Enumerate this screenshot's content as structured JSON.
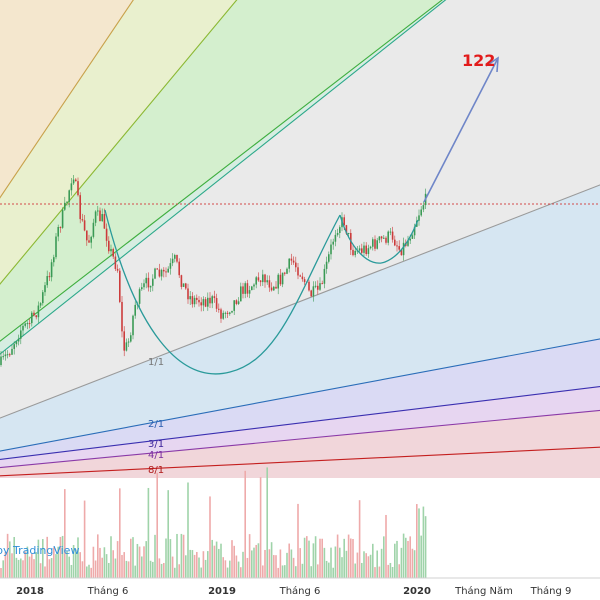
{
  "chart_data": {
    "type": "candlestick",
    "gann_fan": {
      "labels": [
        "1/1",
        "2/1",
        "3/1",
        "4/1",
        "8/1"
      ],
      "label_colors": [
        "#777777",
        "#2a5db0",
        "#3a1f9a",
        "#7a2ea0",
        "#b01c1c"
      ],
      "fill_colors": [
        "#f2e3c6",
        "#e5edc6",
        "#cdecc6",
        "#cfeadc",
        "#e6e6e6",
        "#cfe2f0",
        "#d4d4f2",
        "#e3cfee",
        "#efcfd4"
      ],
      "line_colors": [
        "#c8a14a",
        "#8bb832",
        "#3eae3e",
        "#2ba88a",
        "#9a9a9a",
        "#2a6db8",
        "#3a2fb0",
        "#8a3aa8",
        "#c41f1f"
      ]
    },
    "target_label": "122",
    "x_tick_labels": [
      "2018",
      "Tháng 6",
      "2019",
      "Tháng 6",
      "2020",
      "Tháng Năm",
      "Tháng 9"
    ],
    "x_tick_bold": [
      true,
      false,
      true,
      false,
      true,
      false,
      false
    ],
    "watermark": "by TradingView",
    "colors": {
      "up": "#3a9a55",
      "down": "#cc3b3b",
      "volume_up": "#9fd3a9",
      "volume_down": "#eeaaaa",
      "resistance": "#d34a4a",
      "arc": "#2a9a9a",
      "projection": "#6f86c8"
    }
  }
}
